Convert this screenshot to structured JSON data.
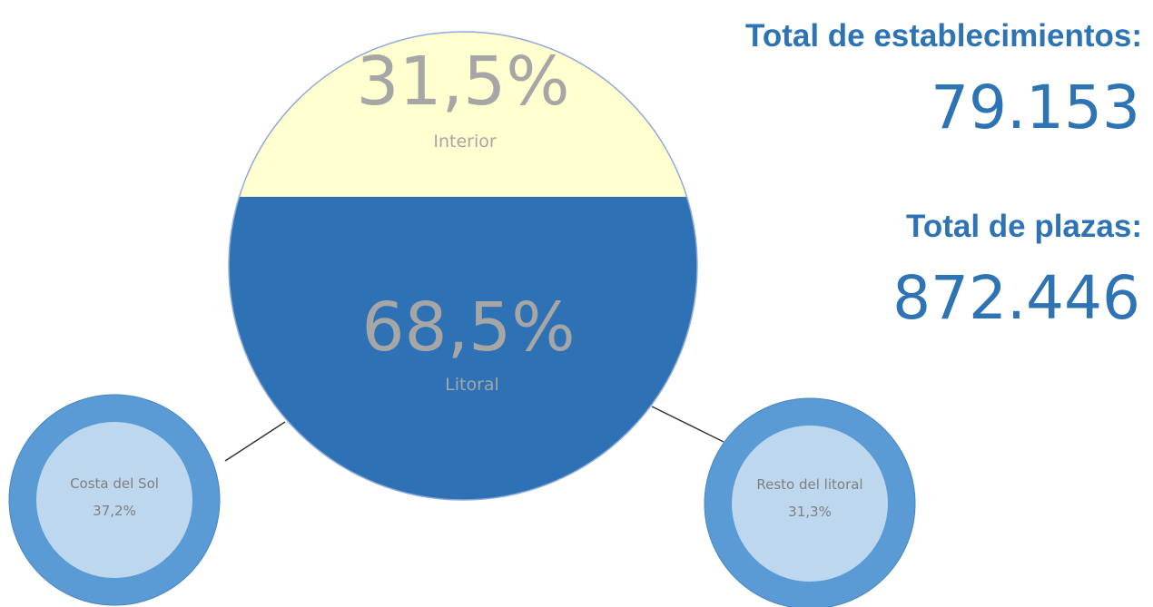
{
  "colors": {
    "interior_fill": "#ffffcf",
    "litoral_fill": "#2e72b5",
    "pct_text": "#a6a6a6",
    "small_outer": "#5a9bd5",
    "small_inner": "#bdd7ee",
    "small_text": "#7f7f7f",
    "stat_color": "#2e74b5",
    "connector": "#333333"
  },
  "main_circle": {
    "interior": {
      "percent": "31,5%",
      "label": "Interior",
      "share": 0.315
    },
    "litoral": {
      "percent": "68,5%",
      "label": "Litoral",
      "share": 0.685
    }
  },
  "sub_circles": [
    {
      "name": "Costa del Sol",
      "percent": "37,2%"
    },
    {
      "name": "Resto del litoral",
      "percent": "31,3%"
    }
  ],
  "stats": {
    "establishments_label": "Total de establecimientos:",
    "establishments_value": "79.153",
    "places_label": "Total de plazas:",
    "places_value": "872.446"
  }
}
